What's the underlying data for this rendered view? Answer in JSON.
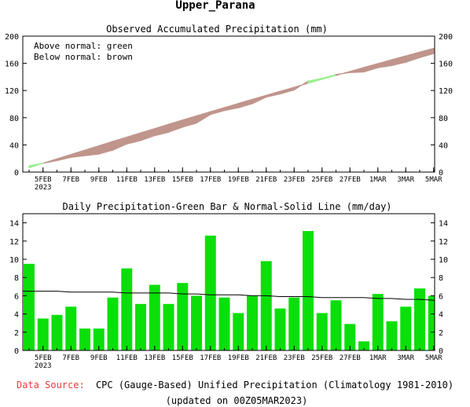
{
  "page": {
    "title": "Upper_Parana",
    "footer": {
      "source_label": "Data Source:",
      "source_text": "CPC (Gauge-Based) Unified Precipitation (Climatology 1981-2010)",
      "updated_text": "(updated on 00Z05MAR2023)",
      "source_label_color": "#e83b3b"
    }
  },
  "chart_data": [
    {
      "type": "area",
      "title": "Observed Accumulated Precipitation (mm)",
      "legend_lines": [
        "Above normal: green",
        "Below normal: brown"
      ],
      "legend_placement": "top-left",
      "colors": {
        "above": "#9aef8f",
        "below": "#c0958c"
      },
      "ylim": [
        0,
        200
      ],
      "yticks": [
        0,
        40,
        80,
        120,
        160,
        200
      ],
      "x_range": [
        "2023-02-04",
        "2023-03-05"
      ],
      "x_ticks": [
        "5FEB",
        "7FEB",
        "9FEB",
        "11FEB",
        "13FEB",
        "15FEB",
        "17FEB",
        "19FEB",
        "21FEB",
        "23FEB",
        "25FEB",
        "27FEB",
        "1MAR",
        "3MAR",
        "5MAR"
      ],
      "x_year_label": "2023",
      "grid": false,
      "dates": [
        "2023-02-04",
        "2023-02-05",
        "2023-02-06",
        "2023-02-07",
        "2023-02-08",
        "2023-02-09",
        "2023-02-10",
        "2023-02-11",
        "2023-02-12",
        "2023-02-13",
        "2023-02-14",
        "2023-02-15",
        "2023-02-16",
        "2023-02-17",
        "2023-02-18",
        "2023-02-19",
        "2023-02-20",
        "2023-02-21",
        "2023-02-22",
        "2023-02-23",
        "2023-02-24",
        "2023-02-25",
        "2023-02-26",
        "2023-02-27",
        "2023-02-28",
        "2023-03-01",
        "2023-03-02",
        "2023-03-03",
        "2023-03-04",
        "2023-03-05"
      ],
      "series": [
        {
          "name": "Observed",
          "values": [
            9.5,
            13,
            16.9,
            21.7,
            24.1,
            26.5,
            32.3,
            41.3,
            46.4,
            53.6,
            58.7,
            66.1,
            72.1,
            84.7,
            90.5,
            94.6,
            100.6,
            110.4,
            115.0,
            120.8,
            133.9,
            138.0,
            143.5,
            146.4,
            147.4,
            153.6,
            156.8,
            161.6,
            168.4,
            174.4
          ]
        },
        {
          "name": "Normal",
          "values": [
            6.5,
            13.0,
            19.5,
            25.9,
            32.3,
            38.7,
            45.1,
            51.4,
            57.7,
            64.0,
            70.3,
            76.5,
            82.7,
            88.8,
            94.9,
            101.0,
            107.0,
            113.0,
            118.9,
            124.8,
            130.7,
            136.5,
            142.3,
            148.1,
            153.9,
            159.6,
            165.3,
            170.9,
            176.5,
            182.0
          ]
        }
      ]
    },
    {
      "type": "bar",
      "title": "Daily Precipitation-Green Bar & Normal-Solid Line (mm/day)",
      "colors": {
        "bar": "#0adf0a",
        "normal_line": "#000000"
      },
      "ylim": [
        0,
        15
      ],
      "yticks": [
        0,
        2,
        4,
        6,
        8,
        10,
        12,
        14
      ],
      "x_ticks": [
        "5FEB",
        "7FEB",
        "9FEB",
        "11FEB",
        "13FEB",
        "15FEB",
        "17FEB",
        "19FEB",
        "21FEB",
        "23FEB",
        "25FEB",
        "27FEB",
        "1MAR",
        "3MAR",
        "5MAR"
      ],
      "x_year_label": "2023",
      "grid": false,
      "dates": [
        "2023-02-04",
        "2023-02-05",
        "2023-02-06",
        "2023-02-07",
        "2023-02-08",
        "2023-02-09",
        "2023-02-10",
        "2023-02-11",
        "2023-02-12",
        "2023-02-13",
        "2023-02-14",
        "2023-02-15",
        "2023-02-16",
        "2023-02-17",
        "2023-02-18",
        "2023-02-19",
        "2023-02-20",
        "2023-02-21",
        "2023-02-22",
        "2023-02-23",
        "2023-02-24",
        "2023-02-25",
        "2023-02-26",
        "2023-02-27",
        "2023-02-28",
        "2023-03-01",
        "2023-03-02",
        "2023-03-03",
        "2023-03-04",
        "2023-03-05"
      ],
      "series": [
        {
          "name": "Daily Precipitation",
          "values": [
            9.5,
            3.5,
            3.9,
            4.8,
            2.4,
            2.4,
            5.8,
            9.0,
            5.1,
            7.2,
            5.1,
            7.4,
            6.0,
            12.6,
            5.8,
            4.1,
            6.0,
            9.8,
            4.6,
            5.8,
            13.1,
            4.1,
            5.5,
            2.9,
            1.0,
            6.2,
            3.2,
            4.8,
            6.8,
            6.0
          ]
        },
        {
          "name": "Normal",
          "values": [
            6.5,
            6.5,
            6.5,
            6.4,
            6.4,
            6.4,
            6.4,
            6.3,
            6.3,
            6.3,
            6.3,
            6.2,
            6.2,
            6.1,
            6.1,
            6.1,
            6.0,
            6.0,
            5.9,
            5.9,
            5.9,
            5.8,
            5.8,
            5.8,
            5.8,
            5.7,
            5.7,
            5.6,
            5.6,
            5.5
          ]
        }
      ]
    }
  ]
}
